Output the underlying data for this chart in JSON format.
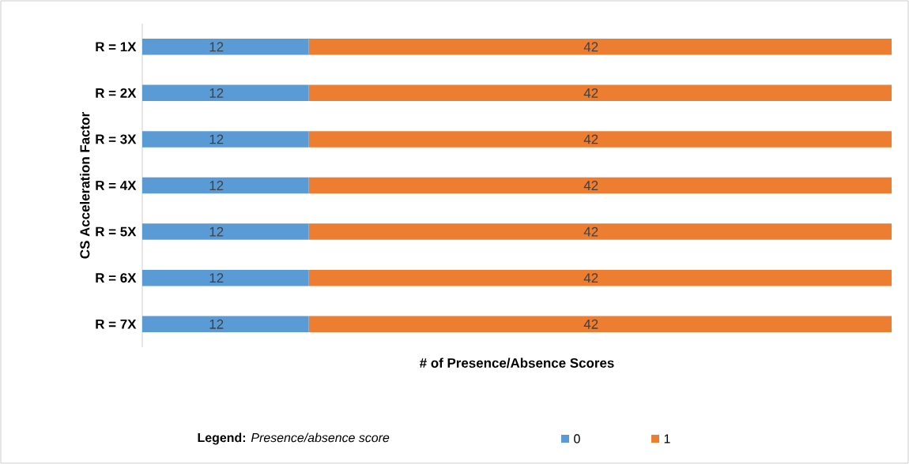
{
  "chart_data": {
    "type": "bar",
    "orientation": "horizontal",
    "stacked": true,
    "data_labels": true,
    "legend": "bottom",
    "tick_labels": "y",
    "xlabel": "# of Presence/Absence Scores",
    "ylabel": "CS Acceleration Factor",
    "legend_title": "**Legend:** *Presence/absence score*",
    "categories": [
      "R = 1X",
      "R = 2X",
      "R = 3X",
      "R = 4X",
      "R = 5X",
      "R = 6X",
      "R = 7X"
    ],
    "series": [
      {
        "name": "0",
        "color": "#5b9bd5",
        "values": [
          12,
          12,
          12,
          12,
          12,
          12,
          12
        ]
      },
      {
        "name": "1",
        "color": "#ed7d31",
        "values": [
          42,
          42,
          42,
          42,
          42,
          42,
          42
        ]
      }
    ]
  }
}
